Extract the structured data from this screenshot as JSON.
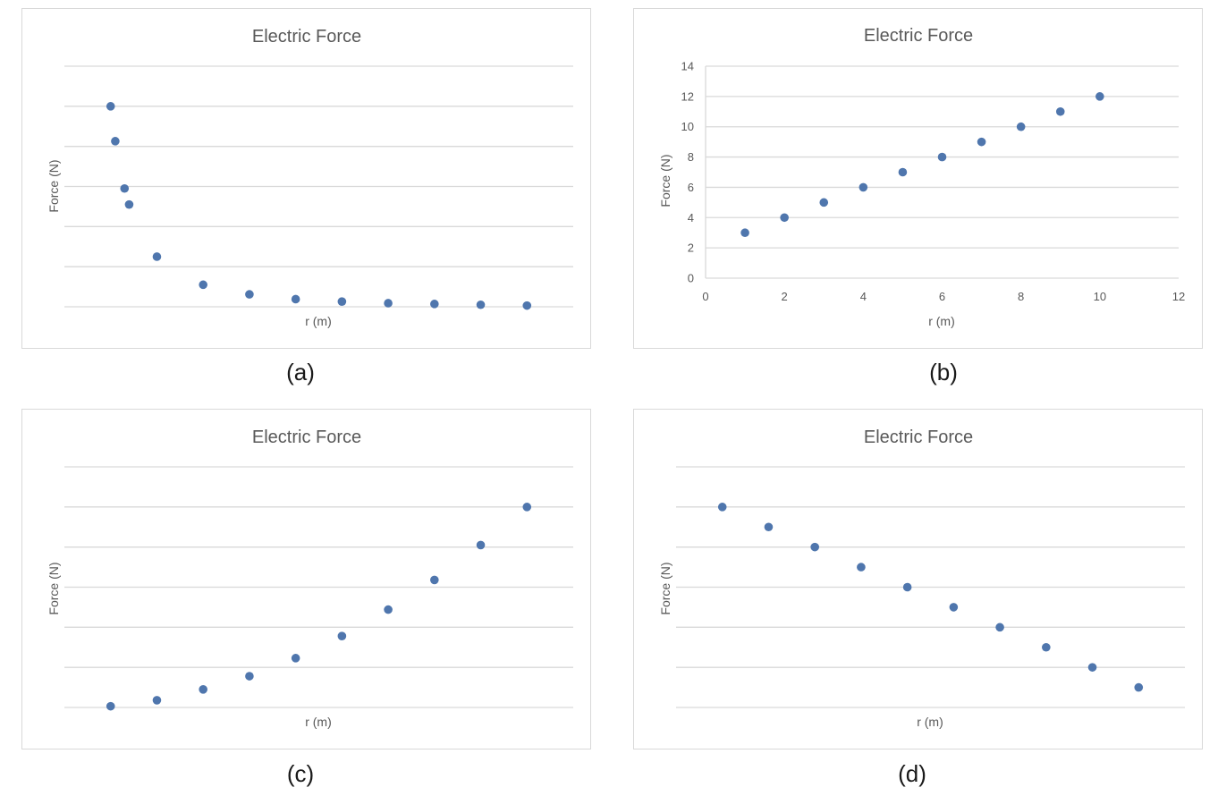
{
  "captions": [
    "(a)",
    "(b)",
    "(c)",
    "(d)"
  ],
  "colors": {
    "marker": "#4f76ad",
    "grid": "#d9d9d9",
    "text": "#595959"
  },
  "chart_data": [
    {
      "type": "scatter",
      "title": "Electric Force",
      "xlabel": "r (m)",
      "ylabel": "Force (N)",
      "grid": true,
      "show_tick_labels": false,
      "xlim": [
        0,
        11
      ],
      "ylim": [
        0,
        6
      ],
      "gridlines": 7,
      "points": [
        {
          "x": 1.0,
          "y": 5.0
        },
        {
          "x": 1.1,
          "y": 4.13
        },
        {
          "x": 1.3,
          "y": 2.95
        },
        {
          "x": 1.4,
          "y": 2.55
        },
        {
          "x": 2.0,
          "y": 1.25
        },
        {
          "x": 3.0,
          "y": 0.55
        },
        {
          "x": 4.0,
          "y": 0.31
        },
        {
          "x": 5.0,
          "y": 0.19
        },
        {
          "x": 6.0,
          "y": 0.13
        },
        {
          "x": 7.0,
          "y": 0.09
        },
        {
          "x": 8.0,
          "y": 0.07
        },
        {
          "x": 9.0,
          "y": 0.05
        },
        {
          "x": 10.0,
          "y": 0.03
        }
      ]
    },
    {
      "type": "scatter",
      "title": "Electric Force",
      "xlabel": "r (m)",
      "ylabel": "Force (N)",
      "grid": true,
      "show_tick_labels": true,
      "xlim": [
        0,
        12
      ],
      "ylim": [
        0,
        14
      ],
      "xticks": [
        0,
        2,
        4,
        6,
        8,
        10,
        12
      ],
      "yticks": [
        0,
        2,
        4,
        6,
        8,
        10,
        12,
        14
      ],
      "points": [
        {
          "x": 1,
          "y": 3
        },
        {
          "x": 2,
          "y": 4
        },
        {
          "x": 3,
          "y": 5
        },
        {
          "x": 4,
          "y": 6
        },
        {
          "x": 5,
          "y": 7
        },
        {
          "x": 6,
          "y": 8
        },
        {
          "x": 7,
          "y": 9
        },
        {
          "x": 8,
          "y": 10
        },
        {
          "x": 9,
          "y": 11
        },
        {
          "x": 10,
          "y": 12
        }
      ]
    },
    {
      "type": "scatter",
      "title": "Electric Force",
      "xlabel": "r (m)",
      "ylabel": "Force (N)",
      "grid": true,
      "show_tick_labels": false,
      "xlim": [
        0,
        11
      ],
      "ylim": [
        0,
        6
      ],
      "gridlines": 7,
      "points": [
        {
          "x": 1,
          "y": 0.03
        },
        {
          "x": 2,
          "y": 0.18
        },
        {
          "x": 3,
          "y": 0.45
        },
        {
          "x": 4,
          "y": 0.78
        },
        {
          "x": 5,
          "y": 1.23
        },
        {
          "x": 6,
          "y": 1.78
        },
        {
          "x": 7,
          "y": 2.44
        },
        {
          "x": 8,
          "y": 3.18
        },
        {
          "x": 9,
          "y": 4.05
        },
        {
          "x": 10,
          "y": 5.0
        }
      ]
    },
    {
      "type": "scatter",
      "title": "Electric Force",
      "xlabel": "r (m)",
      "ylabel": "Force (N)",
      "grid": true,
      "show_tick_labels": false,
      "xlim": [
        0,
        11
      ],
      "ylim": [
        0,
        6
      ],
      "gridlines": 7,
      "points": [
        {
          "x": 1,
          "y": 5.0
        },
        {
          "x": 2,
          "y": 4.5
        },
        {
          "x": 3,
          "y": 4.0
        },
        {
          "x": 4,
          "y": 3.5
        },
        {
          "x": 5,
          "y": 3.0
        },
        {
          "x": 6,
          "y": 2.5
        },
        {
          "x": 7,
          "y": 2.0
        },
        {
          "x": 8,
          "y": 1.5
        },
        {
          "x": 9,
          "y": 1.0
        },
        {
          "x": 10,
          "y": 0.5
        }
      ]
    }
  ]
}
